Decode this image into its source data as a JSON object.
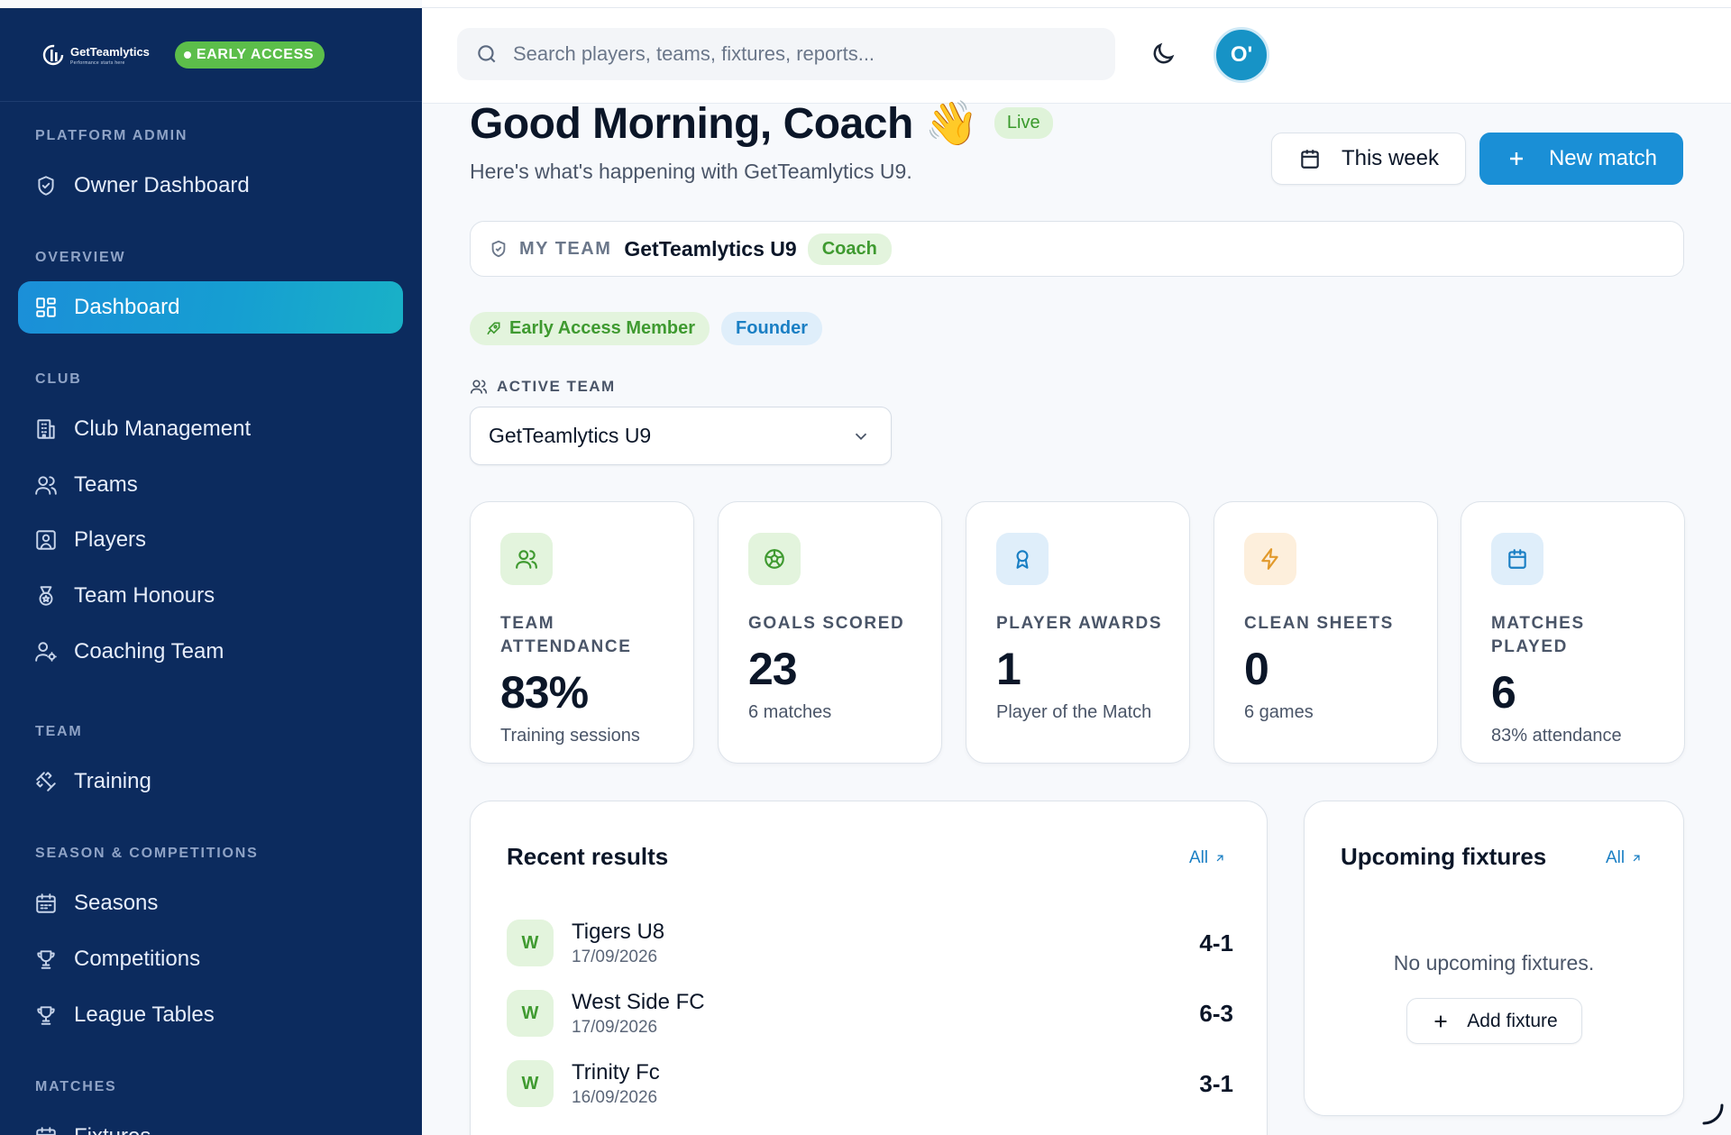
{
  "brand": {
    "logo_text": "GetTeamlytics",
    "logo_sub": "Performance starts here",
    "badge": "EARLY ACCESS"
  },
  "sidebar": {
    "sections": [
      {
        "title": "PLATFORM ADMIN",
        "items": [
          {
            "label": "Owner Dashboard",
            "icon": "shield-icon"
          }
        ]
      },
      {
        "title": "OVERVIEW",
        "items": [
          {
            "label": "Dashboard",
            "icon": "grid-icon",
            "active": true
          }
        ]
      },
      {
        "title": "CLUB",
        "items": [
          {
            "label": "Club Management",
            "icon": "building-icon"
          },
          {
            "label": "Teams",
            "icon": "users-icon"
          },
          {
            "label": "Players",
            "icon": "player-card-icon"
          },
          {
            "label": "Team Honours",
            "icon": "medal-icon"
          },
          {
            "label": "Coaching Team",
            "icon": "user-cog-icon"
          }
        ]
      },
      {
        "title": "TEAM",
        "items": [
          {
            "label": "Training",
            "icon": "dumbbell-icon"
          }
        ]
      },
      {
        "title": "SEASON & COMPETITIONS",
        "items": [
          {
            "label": "Seasons",
            "icon": "calendar-icon"
          },
          {
            "label": "Competitions",
            "icon": "trophy-icon"
          },
          {
            "label": "League Tables",
            "icon": "trophy-icon"
          }
        ]
      },
      {
        "title": "MATCHES",
        "items": [
          {
            "label": "Fixtures",
            "icon": "calendar-icon"
          }
        ]
      }
    ]
  },
  "topbar": {
    "search_placeholder": "Search players, teams, fixtures, reports...",
    "avatar_initials": "O'"
  },
  "header": {
    "greeting": "Good Morning, Coach 👋",
    "live": "Live",
    "subtitle": "Here's what's happening with GetTeamlytics U9.",
    "week_button": "This week",
    "new_match_button": "New match"
  },
  "my_team": {
    "label": "MY TEAM",
    "name": "GetTeamlytics U9",
    "role": "Coach"
  },
  "badges": {
    "early_access": "Early Access Member",
    "founder": "Founder"
  },
  "active_team": {
    "label": "ACTIVE TEAM",
    "selected": "GetTeamlytics U9"
  },
  "stats": [
    {
      "label": "TEAM ATTENDANCE",
      "value": "83%",
      "sub": "Training sessions",
      "icon": "users-icon",
      "bg": "#e3f4dd",
      "color": "#3f9a30"
    },
    {
      "label": "GOALS SCORED",
      "value": "23",
      "sub": "6 matches",
      "icon": "ball-icon",
      "bg": "#e3f4dd",
      "color": "#3f9a30"
    },
    {
      "label": "PLAYER AWARDS",
      "value": "1",
      "sub": "Player of the Match",
      "icon": "award-icon",
      "bg": "#dfeefa",
      "color": "#1a7fc4"
    },
    {
      "label": "CLEAN SHEETS",
      "value": "0",
      "sub": "6 games",
      "icon": "bolt-icon",
      "bg": "#fdefdc",
      "color": "#e29a2c"
    },
    {
      "label": "MATCHES PLAYED",
      "value": "6",
      "sub": "83% attendance",
      "icon": "calendar-icon",
      "bg": "#dfeefa",
      "color": "#1a7fc4"
    }
  ],
  "recent_results": {
    "title": "Recent results",
    "all": "All",
    "rows": [
      {
        "result": "W",
        "team": "Tigers U8",
        "date": "17/09/2026",
        "score": "4-1"
      },
      {
        "result": "W",
        "team": "West Side FC",
        "date": "17/09/2026",
        "score": "6-3"
      },
      {
        "result": "W",
        "team": "Trinity Fc",
        "date": "16/09/2026",
        "score": "3-1"
      }
    ]
  },
  "upcoming": {
    "title": "Upcoming fixtures",
    "all": "All",
    "empty": "No upcoming fixtures.",
    "add_button": "Add fixture"
  },
  "colors": {
    "sidebar_bg": "#0c2b5e",
    "accent": "#1a8fd6",
    "success": "#3f9a30"
  }
}
